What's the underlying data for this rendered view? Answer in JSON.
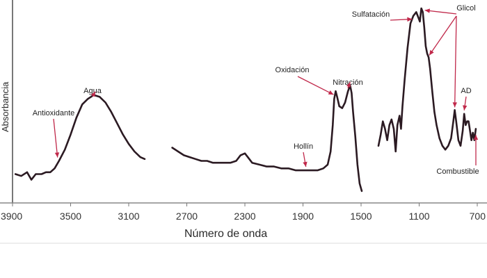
{
  "chart_data": {
    "type": "line",
    "xlabel": "Número de onda",
    "ylabel": "Absorbancia",
    "x_reversed": true,
    "xlim": [
      3900,
      700
    ],
    "ylim": [
      0,
      1
    ],
    "grid": false,
    "x_ticks": [
      3900,
      3500,
      3100,
      2700,
      2300,
      1900,
      1500,
      1100,
      700
    ],
    "x_tick_labels": [
      "3900",
      "3500",
      "3100",
      "2700",
      "2300",
      "1900",
      "1500",
      "1100",
      "700"
    ],
    "series": [
      {
        "segments": [
          [
            [
              3880,
              0.12
            ],
            [
              3840,
              0.11
            ],
            [
              3800,
              0.13
            ],
            [
              3770,
              0.09
            ],
            [
              3740,
              0.12
            ],
            [
              3700,
              0.12
            ],
            [
              3670,
              0.13
            ],
            [
              3640,
              0.13
            ],
            [
              3610,
              0.15
            ],
            [
              3580,
              0.19
            ],
            [
              3540,
              0.25
            ],
            [
              3500,
              0.33
            ],
            [
              3460,
              0.42
            ],
            [
              3420,
              0.49
            ],
            [
              3380,
              0.52
            ],
            [
              3340,
              0.54
            ],
            [
              3300,
              0.53
            ],
            [
              3260,
              0.5
            ],
            [
              3220,
              0.45
            ],
            [
              3180,
              0.39
            ],
            [
              3140,
              0.33
            ],
            [
              3100,
              0.28
            ],
            [
              3060,
              0.24
            ],
            [
              3020,
              0.21
            ],
            [
              2990,
              0.2
            ]
          ],
          [
            [
              2800,
              0.26
            ],
            [
              2760,
              0.24
            ],
            [
              2720,
              0.22
            ],
            [
              2680,
              0.21
            ],
            [
              2640,
              0.2
            ],
            [
              2600,
              0.19
            ],
            [
              2560,
              0.19
            ],
            [
              2520,
              0.18
            ],
            [
              2480,
              0.18
            ],
            [
              2440,
              0.18
            ],
            [
              2400,
              0.18
            ],
            [
              2360,
              0.19
            ],
            [
              2330,
              0.22
            ],
            [
              2300,
              0.23
            ],
            [
              2280,
              0.21
            ],
            [
              2250,
              0.18
            ],
            [
              2200,
              0.17
            ],
            [
              2150,
              0.16
            ],
            [
              2100,
              0.16
            ],
            [
              2050,
              0.15
            ],
            [
              2000,
              0.15
            ],
            [
              1950,
              0.14
            ],
            [
              1900,
              0.14
            ],
            [
              1850,
              0.14
            ],
            [
              1800,
              0.14
            ],
            [
              1760,
              0.15
            ],
            [
              1730,
              0.17
            ],
            [
              1710,
              0.24
            ],
            [
              1695,
              0.38
            ],
            [
              1685,
              0.52
            ],
            [
              1675,
              0.56
            ],
            [
              1665,
              0.53
            ],
            [
              1650,
              0.48
            ],
            [
              1630,
              0.47
            ],
            [
              1610,
              0.5
            ],
            [
              1590,
              0.56
            ],
            [
              1575,
              0.59
            ],
            [
              1565,
              0.55
            ],
            [
              1555,
              0.45
            ],
            [
              1540,
              0.32
            ],
            [
              1525,
              0.17
            ],
            [
              1510,
              0.07
            ],
            [
              1495,
              0.03
            ]
          ],
          [
            [
              1380,
              0.27
            ],
            [
              1365,
              0.33
            ],
            [
              1350,
              0.4
            ],
            [
              1335,
              0.36
            ],
            [
              1320,
              0.3
            ],
            [
              1305,
              0.38
            ],
            [
              1290,
              0.41
            ],
            [
              1275,
              0.36
            ],
            [
              1262,
              0.24
            ],
            [
              1250,
              0.38
            ],
            [
              1235,
              0.43
            ],
            [
              1225,
              0.36
            ],
            [
              1215,
              0.48
            ],
            [
              1200,
              0.62
            ],
            [
              1180,
              0.79
            ],
            [
              1160,
              0.92
            ],
            [
              1140,
              0.96
            ],
            [
              1120,
              0.98
            ],
            [
              1105,
              0.95
            ],
            [
              1095,
              0.93
            ],
            [
              1085,
              1.0
            ],
            [
              1075,
              0.98
            ],
            [
              1065,
              0.9
            ],
            [
              1055,
              0.8
            ],
            [
              1045,
              0.76
            ],
            [
              1035,
              0.74
            ],
            [
              1025,
              0.68
            ],
            [
              1010,
              0.56
            ],
            [
              995,
              0.45
            ],
            [
              980,
              0.38
            ],
            [
              960,
              0.31
            ],
            [
              940,
              0.27
            ],
            [
              920,
              0.25
            ],
            [
              900,
              0.27
            ],
            [
              880,
              0.31
            ],
            [
              865,
              0.4
            ],
            [
              855,
              0.46
            ],
            [
              845,
              0.4
            ],
            [
              830,
              0.3
            ],
            [
              815,
              0.27
            ],
            [
              800,
              0.35
            ],
            [
              790,
              0.44
            ],
            [
              780,
              0.38
            ],
            [
              770,
              0.4
            ],
            [
              760,
              0.4
            ],
            [
              750,
              0.35
            ],
            [
              740,
              0.3
            ],
            [
              730,
              0.34
            ],
            [
              720,
              0.3
            ],
            [
              710,
              0.36
            ]
          ]
        ]
      }
    ],
    "annotations": [
      {
        "text": "Antioxidante",
        "x": 3590
      },
      {
        "text": "Agua",
        "x": 3330
      },
      {
        "text": "Hollín",
        "x": 1880
      },
      {
        "text": "Oxidación",
        "x": 1680
      },
      {
        "text": "Nitración",
        "x": 1575
      },
      {
        "text": "Sulfatación",
        "x": 1110
      },
      {
        "text": "Glicol",
        "x": 1085
      },
      {
        "text": "AD",
        "x": 790
      },
      {
        "text": "Combustible",
        "x": 745
      }
    ]
  },
  "colors": {
    "spectrum": "#2b1a22",
    "arrows": "#c0284a",
    "axes": "#888888"
  }
}
